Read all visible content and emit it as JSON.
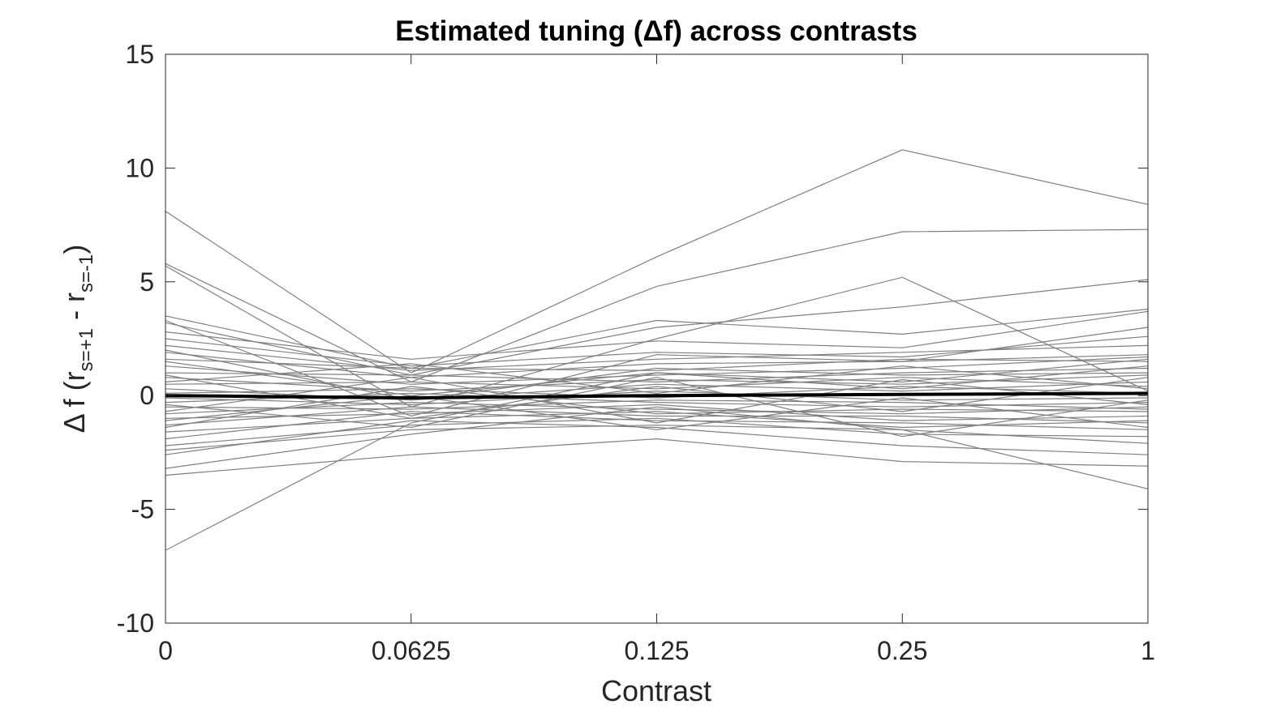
{
  "chart_data": {
    "type": "line",
    "title": "Estimated tuning (Δf) across contrasts",
    "xlabel": "Contrast",
    "ylabel": {
      "prefix": "Δ f (r",
      "sub1": "s=+1",
      "middle": " - r",
      "sub2": "s=-1",
      "suffix": ")"
    },
    "x": [
      "0",
      "0.0625",
      "0.125",
      "0.25",
      "1"
    ],
    "xtick_labels": [
      "0",
      "0.0625",
      "0.125",
      "0.25",
      "1"
    ],
    "ylim": [
      -10,
      15
    ],
    "yticks": [
      -10,
      -5,
      0,
      5,
      10,
      15
    ],
    "ytick_labels": [
      "-10",
      "-5",
      "0",
      "5",
      "10",
      "15"
    ],
    "grid": false,
    "colors": {
      "individual": "#808080",
      "mean": "#000000",
      "axis": "#262626"
    },
    "series": [
      {
        "role": "individual",
        "values": [
          8.1,
          1.0,
          6.1,
          10.8,
          8.4
        ]
      },
      {
        "role": "individual",
        "values": [
          5.8,
          0.6,
          4.8,
          7.2,
          7.3
        ]
      },
      {
        "role": "individual",
        "values": [
          5.7,
          -0.5,
          2.5,
          5.2,
          0.2
        ]
      },
      {
        "role": "individual",
        "values": [
          3.5,
          1.2,
          3.3,
          2.7,
          3.8
        ]
      },
      {
        "role": "individual",
        "values": [
          3.2,
          0.9,
          3.0,
          3.9,
          5.1
        ]
      },
      {
        "role": "individual",
        "values": [
          3.3,
          -0.9,
          1.8,
          1.5,
          3.0
        ]
      },
      {
        "role": "individual",
        "values": [
          2.8,
          1.6,
          2.4,
          2.1,
          3.7
        ]
      },
      {
        "role": "individual",
        "values": [
          -6.8,
          -1.2,
          1.0,
          0.6,
          1.6
        ]
      },
      {
        "role": "individual",
        "values": [
          -3.5,
          -2.6,
          -1.9,
          -2.9,
          -3.1
        ]
      },
      {
        "role": "individual",
        "values": [
          -3.2,
          -1.7,
          -0.5,
          -1.5,
          -4.1
        ]
      },
      {
        "role": "individual",
        "values": [
          -2.6,
          -1.1,
          -1.4,
          -2.2,
          -2.6
        ]
      },
      {
        "role": "individual",
        "values": [
          2.5,
          1.3,
          1.9,
          1.7,
          2.6
        ]
      },
      {
        "role": "individual",
        "values": [
          2.2,
          1.1,
          1.6,
          1.9,
          2.2
        ]
      },
      {
        "role": "individual",
        "values": [
          1.9,
          0.8,
          1.4,
          1.5,
          1.8
        ]
      },
      {
        "role": "individual",
        "values": [
          1.6,
          1.2,
          1.1,
          1.6,
          1.5
        ]
      },
      {
        "role": "individual",
        "values": [
          1.3,
          0.5,
          0.9,
          1.2,
          1.7
        ]
      },
      {
        "role": "individual",
        "values": [
          1.0,
          0.9,
          0.6,
          1.0,
          1.2
        ]
      },
      {
        "role": "individual",
        "values": [
          0.8,
          0.2,
          0.7,
          0.5,
          0.9
        ]
      },
      {
        "role": "individual",
        "values": [
          0.5,
          0.6,
          0.3,
          0.8,
          0.4
        ]
      },
      {
        "role": "individual",
        "values": [
          0.3,
          -0.2,
          0.5,
          0.2,
          0.6
        ]
      },
      {
        "role": "individual",
        "values": [
          0.1,
          0.3,
          -0.1,
          0.4,
          0.1
        ]
      },
      {
        "role": "individual",
        "values": [
          -0.1,
          -0.4,
          0.2,
          -0.2,
          -0.1
        ]
      },
      {
        "role": "individual",
        "values": [
          -0.3,
          0.1,
          -0.3,
          -0.5,
          -0.3
        ]
      },
      {
        "role": "individual",
        "values": [
          -0.5,
          -0.6,
          -0.2,
          -0.3,
          -0.6
        ]
      },
      {
        "role": "individual",
        "values": [
          -0.8,
          -0.3,
          -0.6,
          -0.8,
          -0.5
        ]
      },
      {
        "role": "individual",
        "values": [
          -1.0,
          -0.8,
          -0.4,
          -1.1,
          -0.9
        ]
      },
      {
        "role": "individual",
        "values": [
          -1.3,
          -0.5,
          -0.9,
          -0.9,
          -1.2
        ]
      },
      {
        "role": "individual",
        "values": [
          -1.6,
          -1.0,
          -0.7,
          -1.4,
          -1.1
        ]
      },
      {
        "role": "individual",
        "values": [
          -1.9,
          -0.7,
          -1.1,
          -1.2,
          -1.5
        ]
      },
      {
        "role": "individual",
        "values": [
          -2.2,
          -1.3,
          -1.0,
          -1.7,
          -1.8
        ]
      },
      {
        "role": "individual",
        "values": [
          -2.4,
          -1.5,
          -1.3,
          -1.5,
          -2.1
        ]
      },
      {
        "role": "individual",
        "values": [
          2.0,
          -0.2,
          1.2,
          0.9,
          1.0
        ]
      },
      {
        "role": "individual",
        "values": [
          -1.4,
          0.4,
          -0.8,
          -0.6,
          -0.7
        ]
      },
      {
        "role": "individual",
        "values": [
          0.9,
          -1.0,
          0.4,
          -0.7,
          0.8
        ]
      },
      {
        "role": "individual",
        "values": [
          -0.7,
          0.8,
          -1.2,
          0.7,
          -0.4
        ]
      },
      {
        "role": "individual",
        "values": [
          1.5,
          0.0,
          1.0,
          0.3,
          1.3
        ]
      },
      {
        "role": "individual",
        "values": [
          -1.1,
          0.0,
          -1.5,
          -0.1,
          -1.4
        ]
      },
      {
        "role": "individual",
        "values": [
          0.6,
          1.4,
          0.1,
          1.3,
          0.3
        ]
      },
      {
        "role": "individual",
        "values": [
          -0.4,
          -1.4,
          0.8,
          -1.8,
          -0.2
        ]
      },
      {
        "role": "mean",
        "values": [
          0.0,
          -0.1,
          0.0,
          0.05,
          0.1
        ]
      }
    ]
  }
}
